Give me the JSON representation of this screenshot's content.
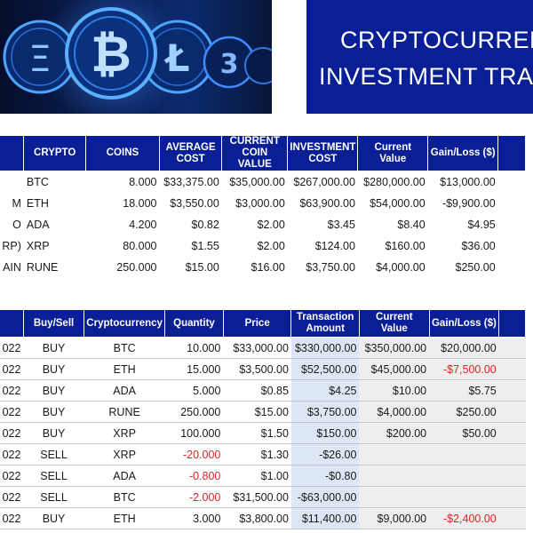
{
  "banner": {
    "coin_symbols": [
      "Ξ",
      "₿",
      "Ł",
      "3"
    ]
  },
  "title": {
    "line1": "CRYPTOCURRENC",
    "line2": "INVESTMENT TRAC"
  },
  "summary": {
    "headers": [
      "",
      "CRYPTO",
      "COINS",
      "AVERAGE COST",
      "CURRENT COIN VALUE",
      "INVESTMENT COST",
      "Current Value",
      "Gain/Loss ($)",
      ""
    ],
    "rows": [
      [
        "",
        "BTC",
        "8.000",
        "$33,375.00",
        "$35,000.00",
        "$267,000.00",
        "$280,000.00",
        "$13,000.00"
      ],
      [
        "M",
        "ETH",
        "18.000",
        "$3,550.00",
        "$3,000.00",
        "$63,900.00",
        "$54,000.00",
        "-$9,900.00"
      ],
      [
        "O",
        "ADA",
        "4.200",
        "$0.82",
        "$2.00",
        "$3.45",
        "$8.40",
        "$4.95"
      ],
      [
        "RP)",
        "XRP",
        "80.000",
        "$1.55",
        "$2.00",
        "$124.00",
        "$160.00",
        "$36.00"
      ],
      [
        "AIN",
        "RUNE",
        "250.000",
        "$15.00",
        "$16.00",
        "$3,750.00",
        "$4,000.00",
        "$250.00"
      ]
    ]
  },
  "transactions": {
    "headers": [
      "",
      "Buy/Sell",
      "Cryptocurrency",
      "Quantity",
      "Price",
      "Transaction Amount",
      "Current Value",
      "Gain/Loss ($)",
      ""
    ],
    "rows": [
      [
        "022",
        "BUY",
        "BTC",
        "10.000",
        "$33,000.00",
        "$330,000.00",
        "$350,000.00",
        "$20,000.00"
      ],
      [
        "022",
        "BUY",
        "ETH",
        "15.000",
        "$3,500.00",
        "$52,500.00",
        "$45,000.00",
        "-$7,500.00"
      ],
      [
        "022",
        "BUY",
        "ADA",
        "5.000",
        "$0.85",
        "$4.25",
        "$10.00",
        "$5.75"
      ],
      [
        "022",
        "BUY",
        "RUNE",
        "250.000",
        "$15.00",
        "$3,750.00",
        "$4,000.00",
        "$250.00"
      ],
      [
        "022",
        "BUY",
        "XRP",
        "100.000",
        "$1.50",
        "$150.00",
        "$200.00",
        "$50.00"
      ],
      [
        "022",
        "SELL",
        "XRP",
        "-20.000",
        "$1.30",
        "-$26.00",
        "",
        ""
      ],
      [
        "022",
        "SELL",
        "ADA",
        "-0.800",
        "$1.00",
        "-$0.80",
        "",
        ""
      ],
      [
        "022",
        "SELL",
        "BTC",
        "-2.000",
        "$31,500.00",
        "-$63,000.00",
        "",
        ""
      ],
      [
        "022",
        "BUY",
        "ETH",
        "3.000",
        "$3,800.00",
        "$11,400.00",
        "$9,000.00",
        "-$2,400.00"
      ]
    ]
  },
  "colors": {
    "header_blue": "#0a1f96",
    "negative_red": "#e32222",
    "amount_column_blue": "#dde6f4"
  }
}
